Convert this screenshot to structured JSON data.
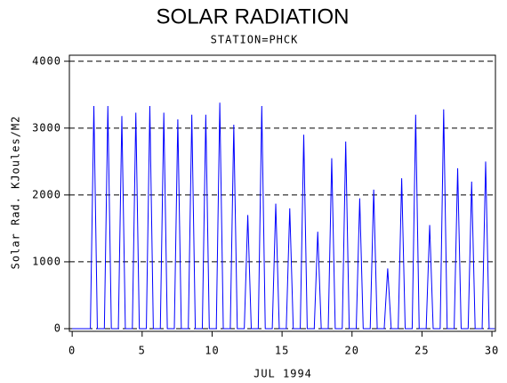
{
  "chart_data": {
    "type": "line",
    "title": "SOLAR RADIATION",
    "subtitle": "STATION=PHCK",
    "x_label": "JUL 1994",
    "y_label": "Solar Rad. KJoules/M2",
    "color": "#0000ff",
    "grid": true,
    "xlim": [
      -0.2,
      30.25
    ],
    "ylim": [
      -40,
      4090
    ],
    "xticks": [
      0,
      5,
      10,
      15,
      20,
      25,
      30
    ],
    "yticks": [
      0,
      1000,
      2000,
      3000,
      4000
    ],
    "x": [
      0,
      1.3,
      1.55,
      1.8,
      2.3,
      2.55,
      2.8,
      3.3,
      3.55,
      3.8,
      4.3,
      4.55,
      4.8,
      5.3,
      5.55,
      5.8,
      6.3,
      6.55,
      6.8,
      7.3,
      7.55,
      7.8,
      8.3,
      8.55,
      8.8,
      9.3,
      9.55,
      9.8,
      10.3,
      10.55,
      10.8,
      11.3,
      11.55,
      11.8,
      12.3,
      12.55,
      12.8,
      13.3,
      13.55,
      13.8,
      14.3,
      14.55,
      14.8,
      15.3,
      15.55,
      15.8,
      16.3,
      16.55,
      16.8,
      17.3,
      17.55,
      17.8,
      18.3,
      18.55,
      18.8,
      19.3,
      19.55,
      19.8,
      20.3,
      20.55,
      20.8,
      21.3,
      21.55,
      21.8,
      22.3,
      22.55,
      22.8,
      23.3,
      23.55,
      23.8,
      24.3,
      24.55,
      24.8,
      25.3,
      25.55,
      25.8,
      26.3,
      26.55,
      26.8,
      27.3,
      27.55,
      27.8,
      28.3,
      28.55,
      28.8,
      29.3,
      29.55,
      29.8,
      30.2
    ],
    "values": [
      0,
      0,
      3330,
      0,
      0,
      3330,
      0,
      0,
      3180,
      0,
      0,
      3230,
      0,
      0,
      3330,
      0,
      0,
      3230,
      0,
      0,
      3130,
      0,
      0,
      3200,
      0,
      0,
      3200,
      0,
      0,
      3380,
      0,
      0,
      3050,
      0,
      0,
      1700,
      0,
      0,
      3330,
      0,
      0,
      1870,
      0,
      0,
      1800,
      0,
      0,
      2900,
      0,
      0,
      1450,
      0,
      0,
      2550,
      0,
      0,
      2800,
      0,
      0,
      1950,
      0,
      0,
      2080,
      0,
      0,
      900,
      0,
      0,
      2250,
      0,
      0,
      3200,
      0,
      0,
      1550,
      0,
      0,
      3280,
      0,
      0,
      2400,
      0,
      0,
      2200,
      0,
      0,
      2500,
      0,
      0
    ]
  }
}
